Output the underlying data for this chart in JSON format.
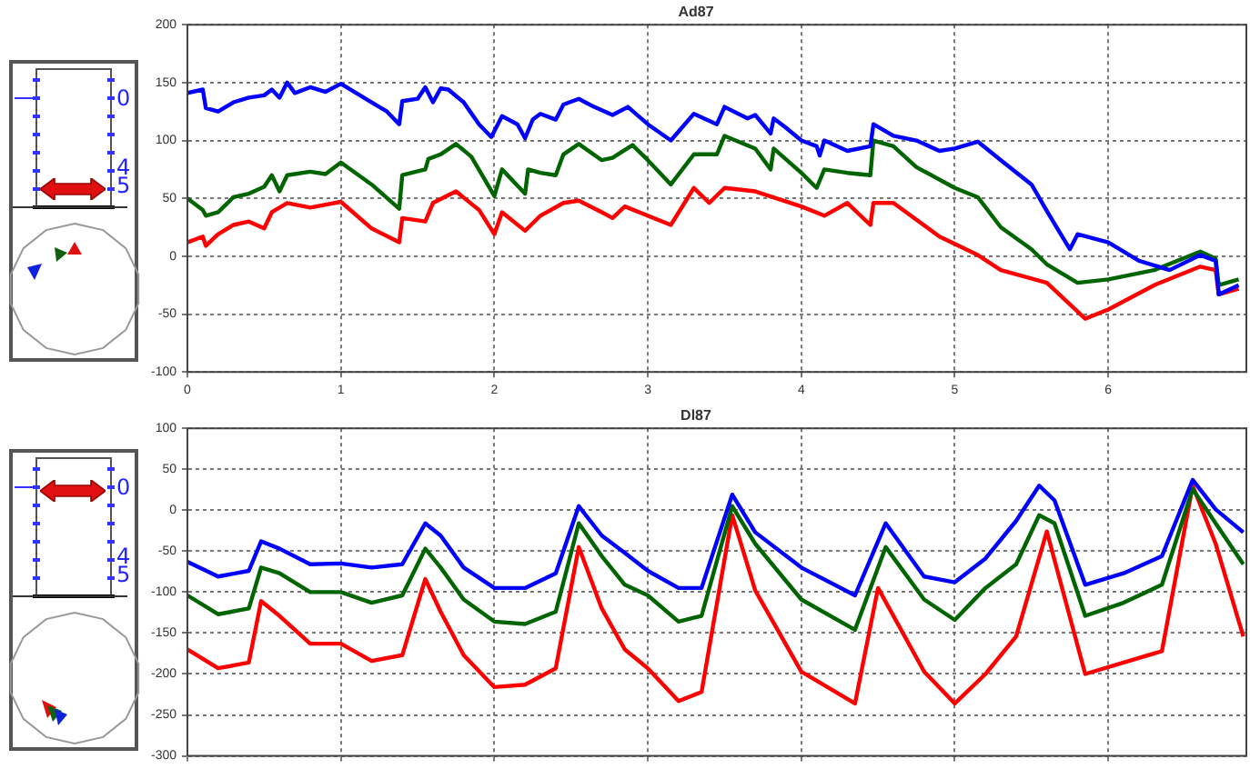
{
  "chart_data": [
    {
      "type": "line",
      "title": "Ad87",
      "xlim": [
        0,
        6.9
      ],
      "xticks": [
        0,
        1,
        2,
        3,
        4,
        5,
        6
      ],
      "ylim": [
        -100,
        200
      ],
      "yticks": [
        -100,
        -50,
        0,
        50,
        100,
        150,
        200
      ],
      "grid": true,
      "annotations": [
        "0",
        "4",
        "5"
      ],
      "series": [
        {
          "color": "#0000ff",
          "x": [
            0,
            0.1,
            0.12,
            0.2,
            0.3,
            0.4,
            0.5,
            0.55,
            0.6,
            0.65,
            0.7,
            0.8,
            0.9,
            1.0,
            1.1,
            1.2,
            1.3,
            1.38,
            1.4,
            1.5,
            1.55,
            1.6,
            1.65,
            1.7,
            1.8,
            1.9,
            1.98,
            2.05,
            2.15,
            2.2,
            2.25,
            2.3,
            2.4,
            2.45,
            2.55,
            2.65,
            2.77,
            2.87,
            3.0,
            3.15,
            3.3,
            3.45,
            3.5,
            3.65,
            3.7,
            3.8,
            3.82,
            3.9,
            4.0,
            4.1,
            4.12,
            4.15,
            4.3,
            4.45,
            4.47,
            4.6,
            4.75,
            4.9,
            5.0,
            5.15,
            5.3,
            5.5,
            5.6,
            5.75,
            5.8,
            6.0,
            6.2,
            6.4,
            6.6,
            6.7,
            6.72,
            6.85
          ],
          "values": [
            141,
            144,
            128,
            125,
            133,
            137,
            139,
            144,
            137,
            150,
            141,
            146,
            142,
            149,
            141,
            133,
            125,
            114,
            134,
            136,
            146,
            133,
            145,
            144,
            133,
            114,
            103,
            121,
            114,
            102,
            118,
            123,
            118,
            131,
            136,
            129,
            122,
            129,
            114,
            100,
            123,
            114,
            129,
            119,
            122,
            106,
            119,
            111,
            100,
            95,
            87,
            100,
            91,
            95,
            114,
            104,
            100,
            91,
            93,
            99,
            83,
            62,
            39,
            6,
            19,
            12,
            -4,
            -12,
            1,
            -4,
            -33,
            -25
          ]
        },
        {
          "color": "#006400",
          "x": [
            0,
            0.1,
            0.12,
            0.2,
            0.3,
            0.4,
            0.5,
            0.55,
            0.6,
            0.65,
            0.8,
            0.9,
            1.0,
            1.2,
            1.38,
            1.4,
            1.55,
            1.57,
            1.65,
            1.75,
            1.85,
            2.0,
            2.05,
            2.2,
            2.22,
            2.3,
            2.4,
            2.45,
            2.55,
            2.7,
            2.77,
            2.9,
            3.0,
            3.15,
            3.3,
            3.45,
            3.5,
            3.7,
            3.8,
            3.82,
            4.0,
            4.1,
            4.15,
            4.3,
            4.45,
            4.47,
            4.6,
            4.75,
            5.0,
            5.15,
            5.3,
            5.5,
            5.6,
            5.8,
            6.0,
            6.3,
            6.6,
            6.7,
            6.72,
            6.85
          ],
          "values": [
            50,
            40,
            35,
            38,
            51,
            54,
            60,
            70,
            56,
            70,
            73,
            71,
            81,
            62,
            41,
            70,
            75,
            84,
            88,
            97,
            86,
            52,
            75,
            54,
            75,
            72,
            70,
            88,
            97,
            83,
            85,
            96,
            83,
            62,
            88,
            88,
            104,
            93,
            75,
            93,
            72,
            59,
            75,
            72,
            70,
            100,
            95,
            77,
            59,
            51,
            25,
            6,
            -7,
            -23,
            -20,
            -12,
            4,
            -2,
            -25,
            -20
          ]
        },
        {
          "color": "#ff0000",
          "x": [
            0,
            0.1,
            0.12,
            0.2,
            0.3,
            0.4,
            0.5,
            0.55,
            0.65,
            0.8,
            1.0,
            1.2,
            1.38,
            1.4,
            1.55,
            1.6,
            1.75,
            1.9,
            2.0,
            2.05,
            2.2,
            2.3,
            2.45,
            2.55,
            2.7,
            2.77,
            2.85,
            3.15,
            3.3,
            3.4,
            3.5,
            3.7,
            4.0,
            4.15,
            4.3,
            4.45,
            4.47,
            4.6,
            4.9,
            5.15,
            5.3,
            5.6,
            5.85,
            6.0,
            6.3,
            6.6,
            6.7,
            6.72,
            6.85
          ],
          "values": [
            12,
            17,
            9,
            19,
            27,
            30,
            24,
            38,
            46,
            42,
            47,
            24,
            12,
            33,
            30,
            46,
            56,
            40,
            19,
            38,
            22,
            35,
            46,
            48,
            38,
            33,
            43,
            27,
            59,
            46,
            59,
            56,
            43,
            35,
            46,
            27,
            46,
            46,
            17,
            1,
            -12,
            -23,
            -54,
            -46,
            -25,
            -9,
            -12,
            -33,
            -28
          ]
        }
      ]
    },
    {
      "type": "line",
      "title": "Dl87",
      "xlim": [
        0,
        6.9
      ],
      "xticks": [
        0,
        1,
        2,
        3,
        4,
        5,
        6
      ],
      "ylim": [
        -300,
        100
      ],
      "yticks": [
        -300,
        -250,
        -200,
        -150,
        -100,
        -50,
        0,
        50,
        100
      ],
      "grid": true,
      "tick_labels": "y",
      "annotations": [
        "0",
        "4",
        "5"
      ],
      "series": [
        {
          "color": "#0000ff",
          "x": [
            0,
            0.2,
            0.4,
            0.48,
            0.6,
            0.8,
            1.0,
            1.2,
            1.4,
            1.55,
            1.65,
            1.8,
            2.0,
            2.2,
            2.4,
            2.55,
            2.7,
            2.85,
            3.0,
            3.2,
            3.35,
            3.55,
            3.7,
            4.0,
            4.35,
            4.55,
            4.8,
            5.0,
            5.2,
            5.4,
            5.55,
            5.65,
            5.85,
            6.1,
            6.35,
            6.55,
            6.7,
            6.88
          ],
          "values": [
            -63,
            -81,
            -74,
            -38,
            -47,
            -66,
            -65,
            -70,
            -66,
            -16,
            -31,
            -70,
            -95,
            -95,
            -77,
            5,
            -31,
            -52,
            -74,
            -95,
            -95,
            19,
            -27,
            -70,
            -104,
            -16,
            -81,
            -88,
            -59,
            -13,
            30,
            12,
            -91,
            -77,
            -56,
            37,
            1,
            -27
          ]
        },
        {
          "color": "#006400",
          "x": [
            0,
            0.2,
            0.4,
            0.48,
            0.6,
            0.8,
            1.0,
            1.2,
            1.4,
            1.55,
            1.65,
            1.8,
            2.0,
            2.2,
            2.4,
            2.55,
            2.7,
            2.85,
            3.0,
            3.2,
            3.35,
            3.55,
            3.7,
            4.0,
            4.35,
            4.55,
            4.8,
            5.0,
            5.2,
            5.4,
            5.55,
            5.65,
            5.85,
            6.1,
            6.35,
            6.55,
            6.7,
            6.88
          ],
          "values": [
            -104,
            -127,
            -120,
            -70,
            -77,
            -100,
            -100,
            -113,
            -104,
            -47,
            -70,
            -109,
            -136,
            -139,
            -124,
            -16,
            -56,
            -91,
            -104,
            -136,
            -129,
            5,
            -41,
            -109,
            -146,
            -45,
            -109,
            -134,
            -95,
            -66,
            -6,
            -16,
            -129,
            -113,
            -91,
            26,
            -16,
            -66
          ]
        },
        {
          "color": "#ff0000",
          "x": [
            0,
            0.2,
            0.4,
            0.48,
            0.6,
            0.8,
            1.0,
            1.2,
            1.4,
            1.55,
            1.65,
            1.8,
            2.0,
            2.2,
            2.4,
            2.55,
            2.7,
            2.85,
            3.0,
            3.2,
            3.35,
            3.55,
            3.7,
            4.0,
            4.35,
            4.5,
            4.8,
            5.0,
            5.2,
            5.4,
            5.6,
            5.85,
            6.1,
            6.35,
            6.55,
            6.7,
            6.88
          ],
          "values": [
            -170,
            -193,
            -186,
            -111,
            -129,
            -163,
            -163,
            -184,
            -177,
            -84,
            -124,
            -177,
            -216,
            -213,
            -193,
            -45,
            -120,
            -170,
            -193,
            -233,
            -222,
            -6,
            -98,
            -197,
            -236,
            -95,
            -197,
            -236,
            -200,
            -154,
            -26,
            -200,
            -186,
            -172,
            30,
            -41,
            -154
          ]
        }
      ]
    }
  ]
}
